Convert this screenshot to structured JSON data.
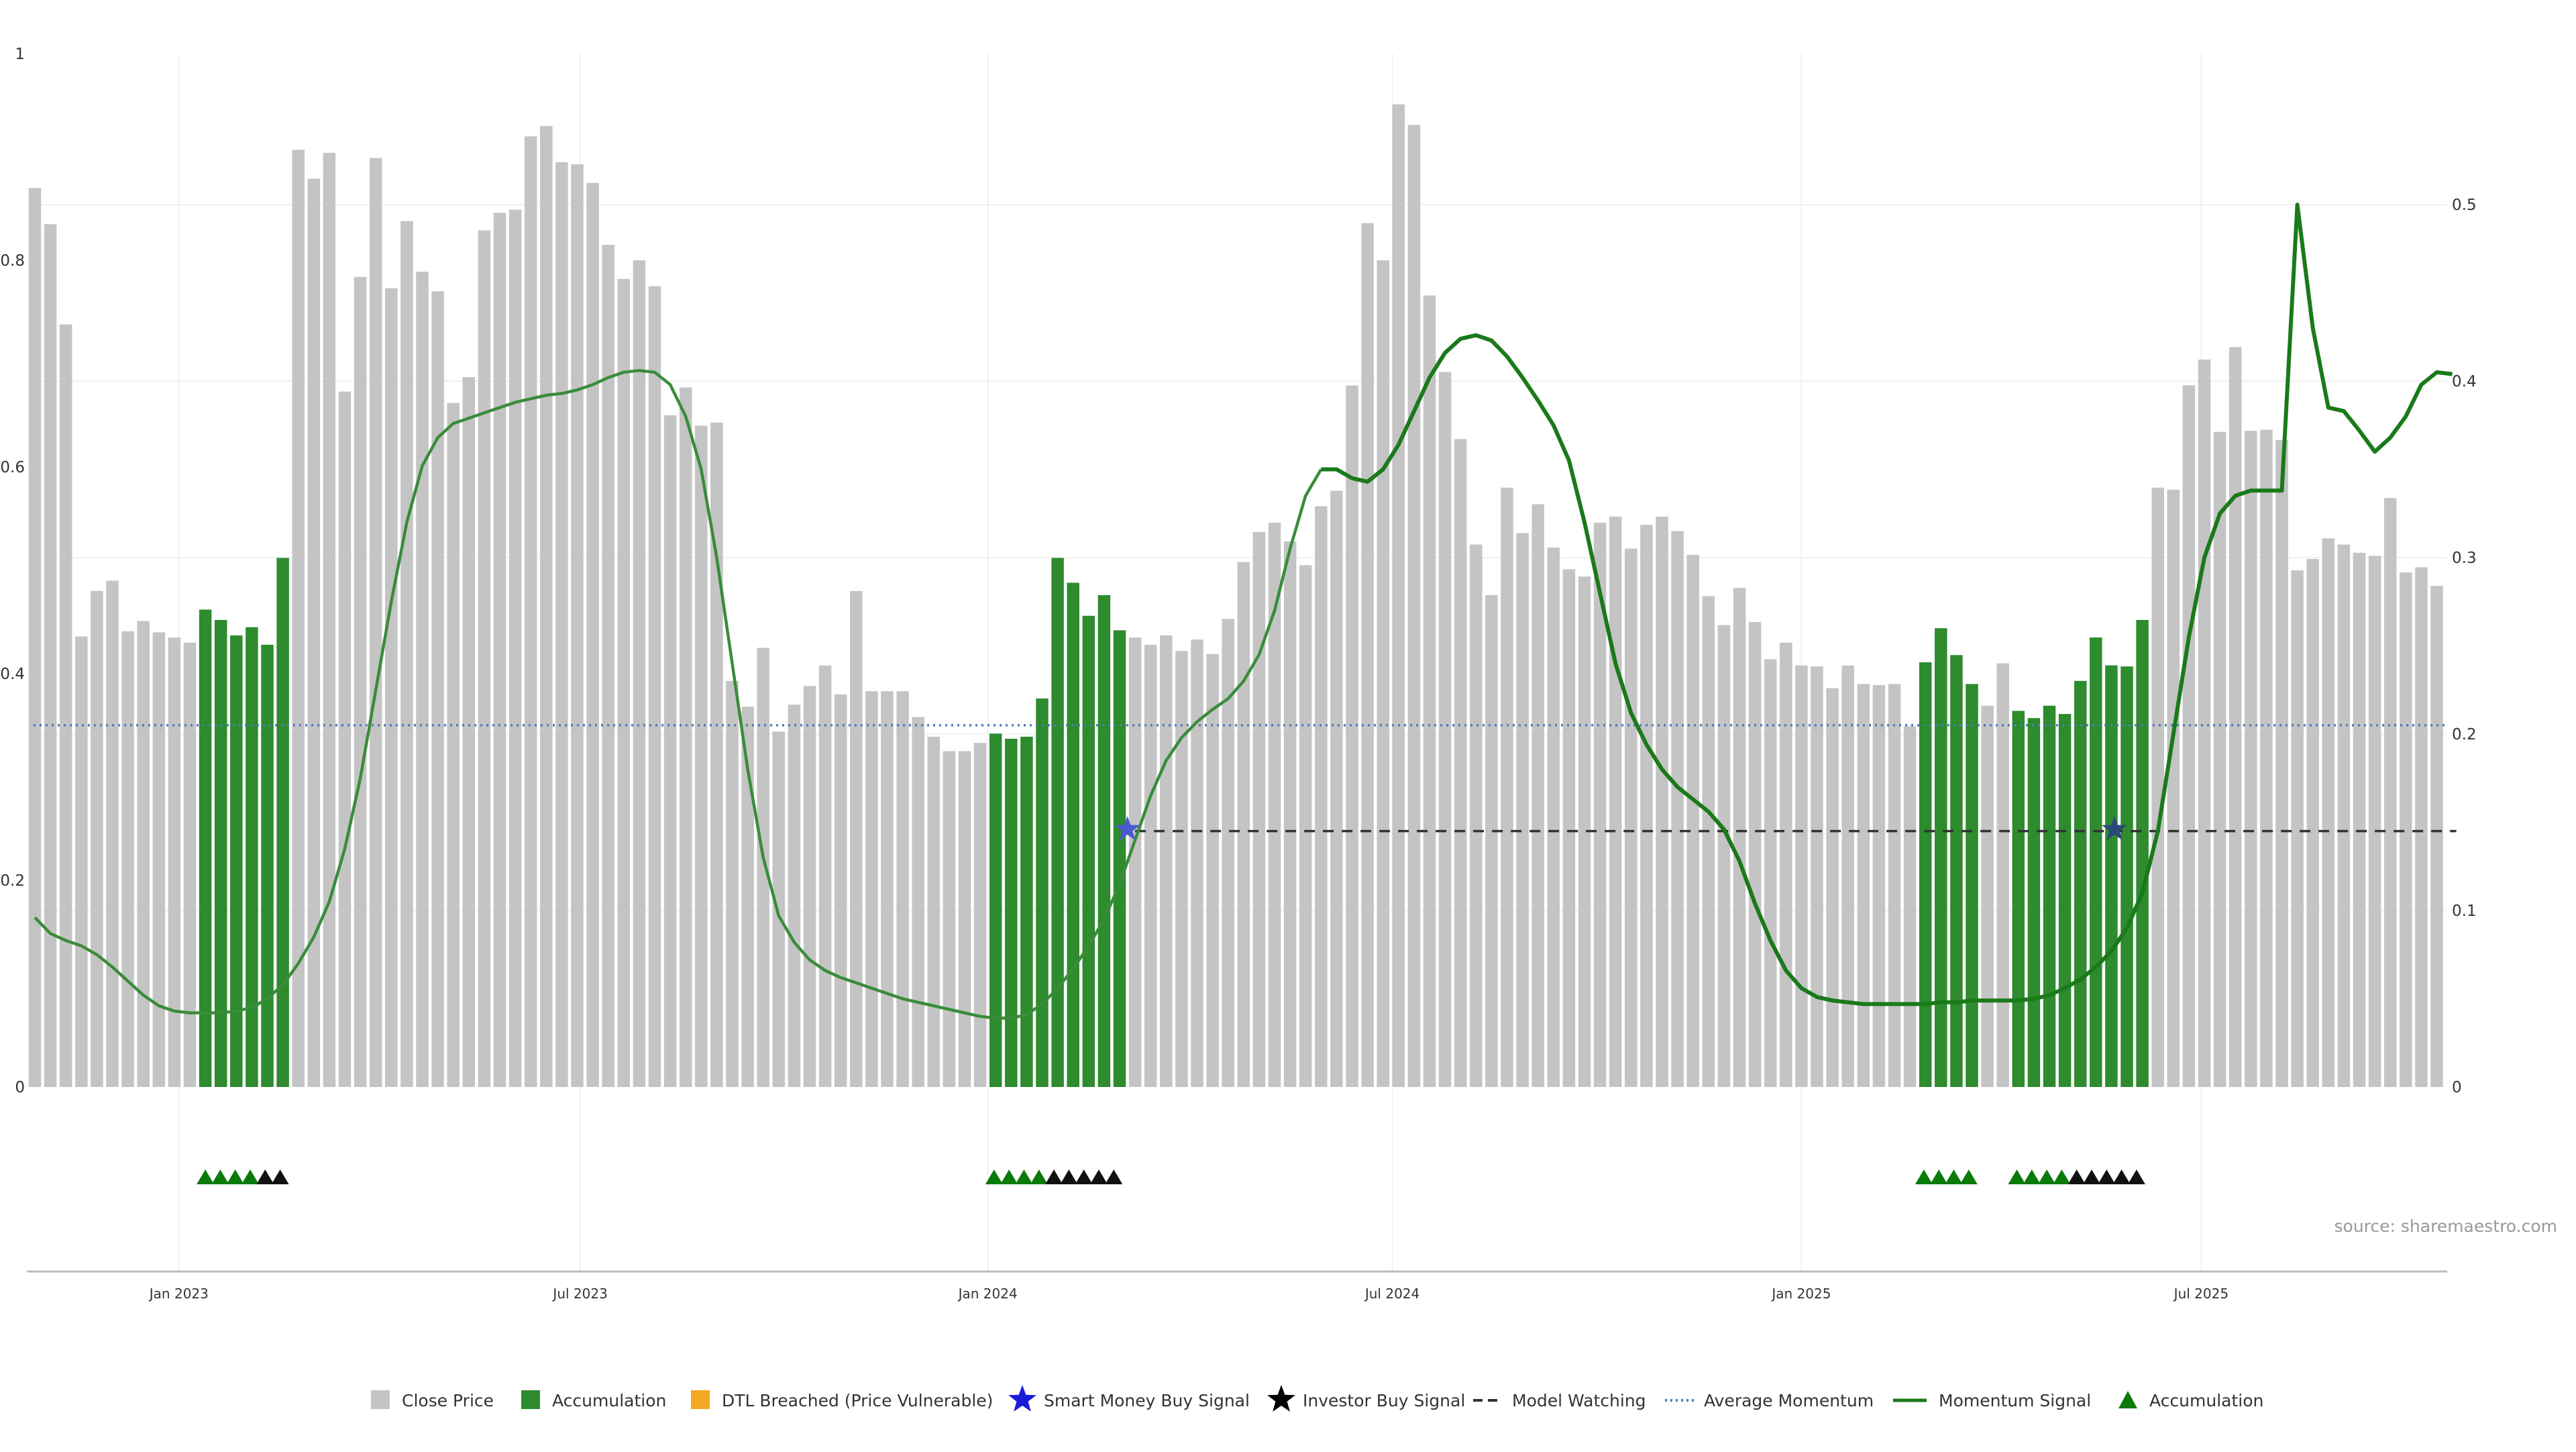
{
  "chart_data": {
    "type": "bar",
    "title": "",
    "source_note": "source: sharemaestro.com",
    "colors": {
      "close": "#c4c4c4",
      "accumulation": "#2e8b2e",
      "dtl": "#f5a623",
      "smart_money": "#1a1adc",
      "investor": "#000000",
      "model_watching": "#333333",
      "average_momentum": "#4a7fb5",
      "momentum": "#1a7a1a",
      "triangle_green": "#0a7a0a",
      "triangle_black": "#111111"
    },
    "left_axis": {
      "ylim": [
        0,
        1
      ],
      "ticks": [
        "0",
        "0.2",
        "0.4",
        "0.6",
        "0.8",
        "1"
      ]
    },
    "right_axis": {
      "ylim": [
        0,
        0.58
      ],
      "ticks": [
        "0",
        "0.1",
        "0.2",
        "0.3",
        "0.4",
        "0.5"
      ]
    },
    "x_ticks": [
      "Jan 2023",
      "Jul 2023",
      "Jan 2024",
      "Jul 2024",
      "Jan 2025",
      "Jul 2025"
    ],
    "x_tick_positions_week": [
      9.3,
      35.2,
      61.5,
      87.6,
      114.0,
      139.8
    ],
    "close_values": [
      0.87,
      0.835,
      0.738,
      0.436,
      0.48,
      0.49,
      0.441,
      0.451,
      0.44,
      0.435,
      0.43,
      0.462,
      0.452,
      0.437,
      0.445,
      0.428,
      0.512,
      0.907,
      0.879,
      0.904,
      0.673,
      0.784,
      0.899,
      0.773,
      0.838,
      0.789,
      0.77,
      0.662,
      0.687,
      0.829,
      0.846,
      0.849,
      0.92,
      0.93,
      0.895,
      0.893,
      0.875,
      0.815,
      0.782,
      0.8,
      0.775,
      0.65,
      0.677,
      0.64,
      0.643,
      0.393,
      0.368,
      0.425,
      0.344,
      0.37,
      0.388,
      0.408,
      0.38,
      0.48,
      0.383,
      0.383,
      0.383,
      0.358,
      0.339,
      0.325,
      0.325,
      0.333,
      0.342,
      0.337,
      0.339,
      0.376,
      0.512,
      0.488,
      0.456,
      0.476,
      0.442,
      0.435,
      0.428,
      0.437,
      0.422,
      0.433,
      0.419,
      0.453,
      0.508,
      0.537,
      0.546,
      0.528,
      0.505,
      0.562,
      0.577,
      0.679,
      0.836,
      0.8,
      0.951,
      0.931,
      0.766,
      0.692,
      0.627,
      0.525,
      0.476,
      0.58,
      0.536,
      0.564,
      0.522,
      0.501,
      0.494,
      0.546,
      0.552,
      0.521,
      0.544,
      0.552,
      0.538,
      0.515,
      0.475,
      0.447,
      0.483,
      0.45,
      0.414,
      0.43,
      0.408,
      0.407,
      0.386,
      0.408,
      0.39,
      0.389,
      0.39,
      0.349,
      0.411,
      0.444,
      0.418,
      0.39,
      0.369,
      0.41,
      0.364,
      0.357,
      0.369,
      0.361,
      0.393,
      0.435,
      0.408,
      0.407,
      0.452,
      0.58,
      0.578,
      0.679,
      0.704,
      0.634,
      0.716,
      0.635,
      0.636,
      0.626,
      0.5,
      0.511,
      0.531,
      0.525,
      0.517,
      0.514,
      0.57,
      0.498,
      0.503,
      0.485
    ],
    "accumulation_weeks": [
      11,
      12,
      13,
      14,
      15,
      16,
      62,
      63,
      64,
      65,
      66,
      67,
      68,
      69,
      70,
      122,
      123,
      124,
      125,
      128,
      129,
      130,
      131,
      132,
      133,
      134,
      135,
      136
    ],
    "momentum_points": [
      [
        0,
        0.096
      ],
      [
        1,
        0.087
      ],
      [
        2,
        0.083
      ],
      [
        3,
        0.08
      ],
      [
        4,
        0.075
      ],
      [
        5,
        0.068
      ],
      [
        6,
        0.06
      ],
      [
        7,
        0.052
      ],
      [
        8,
        0.046
      ],
      [
        9,
        0.043
      ],
      [
        10,
        0.042
      ],
      [
        11,
        0.042
      ],
      [
        12,
        0.042
      ],
      [
        13,
        0.043
      ],
      [
        14,
        0.045
      ],
      [
        15,
        0.05
      ],
      [
        16,
        0.058
      ],
      [
        17,
        0.07
      ],
      [
        18,
        0.085
      ],
      [
        19,
        0.105
      ],
      [
        20,
        0.135
      ],
      [
        21,
        0.175
      ],
      [
        22,
        0.225
      ],
      [
        23,
        0.275
      ],
      [
        24,
        0.32
      ],
      [
        25,
        0.352
      ],
      [
        26,
        0.368
      ],
      [
        27,
        0.376
      ],
      [
        28,
        0.379
      ],
      [
        29,
        0.382
      ],
      [
        30,
        0.385
      ],
      [
        31,
        0.388
      ],
      [
        32,
        0.39
      ],
      [
        33,
        0.392
      ],
      [
        34,
        0.393
      ],
      [
        35,
        0.395
      ],
      [
        36,
        0.398
      ],
      [
        37,
        0.402
      ],
      [
        38,
        0.405
      ],
      [
        39,
        0.406
      ],
      [
        40,
        0.405
      ],
      [
        41,
        0.398
      ],
      [
        42,
        0.38
      ],
      [
        43,
        0.35
      ],
      [
        44,
        0.3
      ],
      [
        45,
        0.24
      ],
      [
        46,
        0.18
      ],
      [
        47,
        0.13
      ],
      [
        48,
        0.097
      ],
      [
        49,
        0.082
      ],
      [
        50,
        0.072
      ],
      [
        51,
        0.066
      ],
      [
        52,
        0.062
      ],
      [
        53,
        0.059
      ],
      [
        54,
        0.056
      ],
      [
        55,
        0.053
      ],
      [
        56,
        0.05
      ],
      [
        57,
        0.048
      ],
      [
        58,
        0.046
      ],
      [
        59,
        0.044
      ],
      [
        60,
        0.042
      ],
      [
        61,
        0.04
      ],
      [
        62,
        0.039
      ],
      [
        63,
        0.039
      ],
      [
        64,
        0.041
      ],
      [
        65,
        0.047
      ],
      [
        66,
        0.056
      ],
      [
        67,
        0.067
      ],
      [
        68,
        0.08
      ],
      [
        69,
        0.095
      ],
      [
        70,
        0.115
      ],
      [
        71,
        0.14
      ],
      [
        72,
        0.165
      ],
      [
        73,
        0.185
      ],
      [
        74,
        0.198
      ],
      [
        75,
        0.207
      ],
      [
        76,
        0.214
      ],
      [
        77,
        0.22
      ],
      [
        78,
        0.23
      ],
      [
        79,
        0.245
      ],
      [
        80,
        0.27
      ],
      [
        81,
        0.305
      ],
      [
        82,
        0.335
      ],
      [
        83,
        0.35
      ],
      [
        84,
        0.35
      ],
      [
        85,
        0.345
      ],
      [
        86,
        0.343
      ],
      [
        87,
        0.35
      ],
      [
        88,
        0.364
      ],
      [
        89,
        0.383
      ],
      [
        90,
        0.402
      ],
      [
        91,
        0.416
      ],
      [
        92,
        0.424
      ],
      [
        93,
        0.426
      ],
      [
        94,
        0.423
      ],
      [
        95,
        0.414
      ],
      [
        96,
        0.402
      ],
      [
        97,
        0.389
      ],
      [
        98,
        0.375
      ],
      [
        99,
        0.355
      ],
      [
        100,
        0.32
      ],
      [
        101,
        0.28
      ],
      [
        102,
        0.24
      ],
      [
        103,
        0.212
      ],
      [
        104,
        0.194
      ],
      [
        105,
        0.18
      ],
      [
        106,
        0.17
      ],
      [
        107,
        0.163
      ],
      [
        108,
        0.156
      ],
      [
        109,
        0.146
      ],
      [
        110,
        0.128
      ],
      [
        111,
        0.104
      ],
      [
        112,
        0.083
      ],
      [
        113,
        0.066
      ],
      [
        114,
        0.056
      ],
      [
        115,
        0.051
      ],
      [
        116,
        0.049
      ],
      [
        117,
        0.048
      ],
      [
        118,
        0.047
      ],
      [
        119,
        0.047
      ],
      [
        120,
        0.047
      ],
      [
        121,
        0.047
      ],
      [
        122,
        0.047
      ],
      [
        123,
        0.048
      ],
      [
        124,
        0.048
      ],
      [
        125,
        0.049
      ],
      [
        126,
        0.049
      ],
      [
        127,
        0.049
      ],
      [
        128,
        0.049
      ],
      [
        129,
        0.05
      ],
      [
        130,
        0.052
      ],
      [
        131,
        0.056
      ],
      [
        132,
        0.061
      ],
      [
        133,
        0.068
      ],
      [
        134,
        0.077
      ],
      [
        135,
        0.09
      ],
      [
        136,
        0.11
      ],
      [
        137,
        0.145
      ],
      [
        138,
        0.2
      ],
      [
        139,
        0.255
      ],
      [
        140,
        0.3
      ],
      [
        141,
        0.325
      ],
      [
        142,
        0.335
      ],
      [
        143,
        0.338
      ],
      [
        144,
        0.338
      ],
      [
        145,
        0.338
      ],
      [
        146,
        0.5
      ],
      [
        147,
        0.43
      ],
      [
        148,
        0.385
      ],
      [
        149,
        0.383
      ],
      [
        150,
        0.372
      ],
      [
        151,
        0.36
      ],
      [
        152,
        0.368
      ],
      [
        153,
        0.38
      ],
      [
        154,
        0.398
      ],
      [
        155,
        0.405
      ],
      [
        156,
        0.404
      ]
    ],
    "momentum_bold_from_week": 83,
    "average_momentum": 0.205,
    "model_watching_level": 0.145,
    "model_watching_segments": [
      [
        71,
        156
      ]
    ],
    "signal_stars": [
      {
        "week": 70.5,
        "value": 0.146,
        "type": "smart_money"
      },
      {
        "week": 134.2,
        "value": 0.146,
        "type": "smart_money_dark"
      }
    ],
    "triangle_groups": [
      {
        "start_week": 11.0,
        "green": 4,
        "black": 2
      },
      {
        "start_week": 61.9,
        "green": 4,
        "black": 5
      },
      {
        "start_week": 121.9,
        "green": 4,
        "black": 0
      },
      {
        "start_week": 127.9,
        "green": 4,
        "black": 5
      }
    ],
    "legend": [
      {
        "label": "Close Price",
        "symbol": "square",
        "color_key": "close"
      },
      {
        "label": "Accumulation",
        "symbol": "square",
        "color_key": "accumulation"
      },
      {
        "label": "DTL Breached (Price Vulnerable)",
        "symbol": "square",
        "color_key": "dtl"
      },
      {
        "label": "Smart Money Buy Signal",
        "symbol": "star",
        "color_key": "smart_money"
      },
      {
        "label": "Investor Buy Signal",
        "symbol": "star",
        "color_key": "investor"
      },
      {
        "label": "Model Watching",
        "symbol": "dash",
        "color_key": "model_watching"
      },
      {
        "label": "Average Momentum",
        "symbol": "dot",
        "color_key": "average_momentum"
      },
      {
        "label": "Momentum Signal",
        "symbol": "line",
        "color_key": "momentum"
      },
      {
        "label": "Accumulation",
        "symbol": "triangle",
        "color_key": "triangle_green"
      }
    ]
  }
}
